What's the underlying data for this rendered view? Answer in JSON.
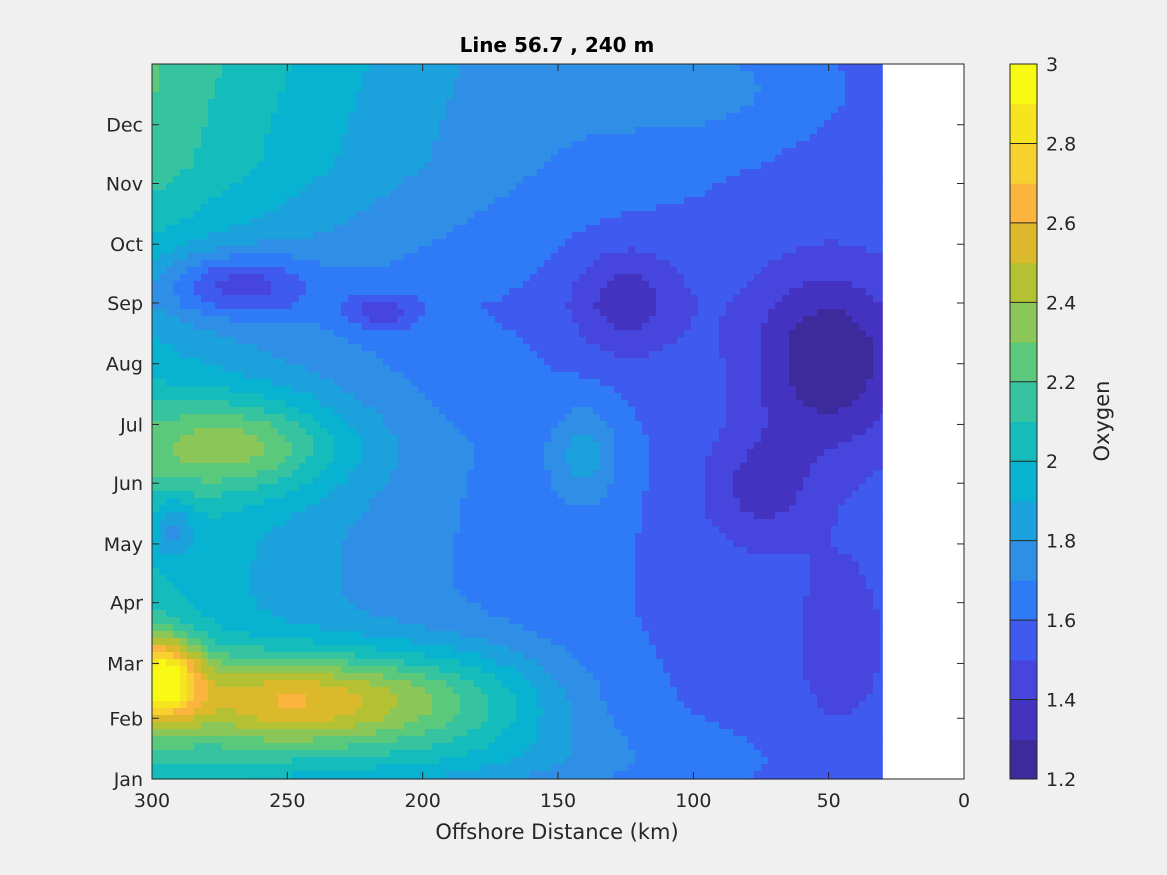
{
  "chart_data": {
    "type": "heatmap",
    "subtype": "filled-contour",
    "title": "Line 56.7 , 240 m",
    "xlabel": "Offshore Distance (km)",
    "ylabel": "",
    "xlim": [
      300,
      0
    ],
    "x_reversed": true,
    "xticks": [
      "300",
      "250",
      "200",
      "150",
      "100",
      "50",
      "0"
    ],
    "yticks": [
      "Jan",
      "Feb",
      "Mar",
      "Apr",
      "May",
      "Jun",
      "Jul",
      "Aug",
      "Sep",
      "Oct",
      "Nov",
      "Dec"
    ],
    "ylim": [
      0,
      365
    ],
    "colorbar": {
      "label": "Oxygen",
      "range": [
        1.2,
        3.0
      ],
      "levels": [
        1.2,
        1.3,
        1.4,
        1.5,
        1.6,
        1.7,
        1.8,
        1.9,
        2.0,
        2.1,
        2.2,
        2.3,
        2.4,
        2.5,
        2.6,
        2.7,
        2.8,
        2.9,
        3.0
      ],
      "tick_labels": [
        "1.2",
        "1.4",
        "1.6",
        "1.8",
        "2",
        "2.2",
        "2.4",
        "2.6",
        "2.8",
        "3"
      ],
      "colormap": "parula",
      "colors": [
        "#3e2b9b",
        "#4333c0",
        "#4646de",
        "#3f5bef",
        "#2f7bf7",
        "#2f8fe6",
        "#1ba2dd",
        "#08b3d2",
        "#14bdbc",
        "#36c3a0",
        "#5ac97b",
        "#8bc659",
        "#b4c132",
        "#dbb92a",
        "#fbb43e",
        "#f8d131",
        "#f6e51e",
        "#f9fa13"
      ]
    },
    "data_coverage_x": [
      30,
      300
    ],
    "grid": false,
    "legend": "colorbar-right",
    "annotations": [
      {
        "feature": "maximum",
        "value": 3.0,
        "x": 295,
        "month": "Feb-Mar"
      },
      {
        "feature": "minimum",
        "value": 1.25,
        "x": 35,
        "month": "Jul-Aug"
      }
    ]
  }
}
